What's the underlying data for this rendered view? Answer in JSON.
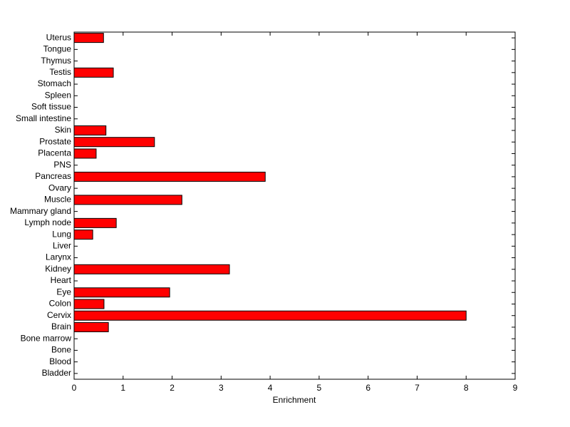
{
  "chart_data": {
    "type": "barh",
    "xlabel": "Enrichment",
    "categories": [
      "Bladder",
      "Blood",
      "Bone",
      "Bone marrow",
      "Brain",
      "Cervix",
      "Colon",
      "Eye",
      "Heart",
      "Kidney",
      "Larynx",
      "Liver",
      "Lung",
      "Lymph node",
      "Mammary gland",
      "Muscle",
      "Ovary",
      "Pancreas",
      "PNS",
      "Placenta",
      "Prostate",
      "Skin",
      "Small intestine",
      "Soft tissue",
      "Spleen",
      "Stomach",
      "Testis",
      "Thymus",
      "Tongue",
      "Uterus"
    ],
    "values": [
      0,
      0,
      0,
      0,
      0.7,
      8.0,
      0.61,
      1.95,
      0,
      3.17,
      0,
      0,
      0.38,
      0.86,
      0,
      2.2,
      0,
      3.9,
      0,
      0.45,
      1.64,
      0.65,
      0,
      0,
      0,
      0,
      0.8,
      0,
      0,
      0.6
    ],
    "color": "#ff0000",
    "xlim": [
      0,
      9
    ],
    "xticks": [
      0,
      1,
      2,
      3,
      4,
      5,
      6,
      7,
      8,
      9
    ]
  }
}
